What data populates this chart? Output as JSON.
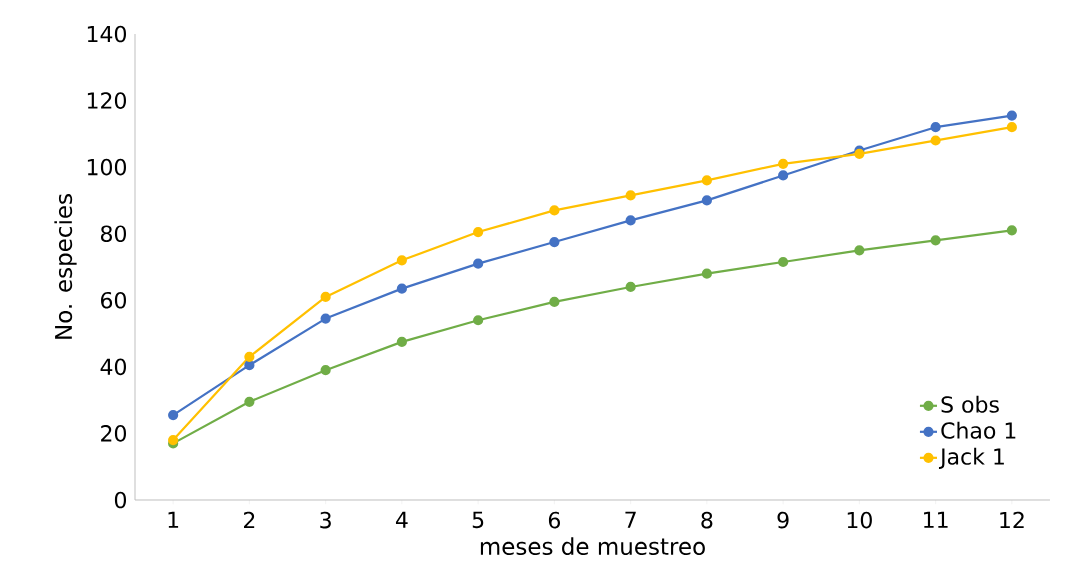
{
  "chart_data": {
    "type": "line",
    "xlabel": "meses de muestreo",
    "ylabel": "No. especies",
    "categories": [
      "1",
      "2",
      "3",
      "4",
      "5",
      "6",
      "7",
      "8",
      "9",
      "10",
      "11",
      "12"
    ],
    "series": [
      {
        "name": "S obs",
        "color": "#70ad47",
        "values": [
          17,
          29.5,
          39,
          47.5,
          54,
          59.5,
          64,
          68,
          71.5,
          75,
          78,
          81
        ]
      },
      {
        "name": "Chao 1",
        "color": "#4472c4",
        "values": [
          25.5,
          40.5,
          54.5,
          63.5,
          71,
          77.5,
          84,
          90,
          97.5,
          105,
          112,
          115.5
        ]
      },
      {
        "name": "Jack 1",
        "color": "#ffc000",
        "values": [
          18,
          43,
          61,
          72,
          80.5,
          87,
          91.5,
          96,
          101,
          104,
          108,
          112
        ]
      }
    ],
    "ylim": [
      0,
      140
    ],
    "yticks": [
      0,
      20,
      40,
      60,
      80,
      100,
      120,
      140
    ],
    "legend": "bottom right",
    "marker": "circle",
    "line_style": "solid",
    "grid": false
  }
}
